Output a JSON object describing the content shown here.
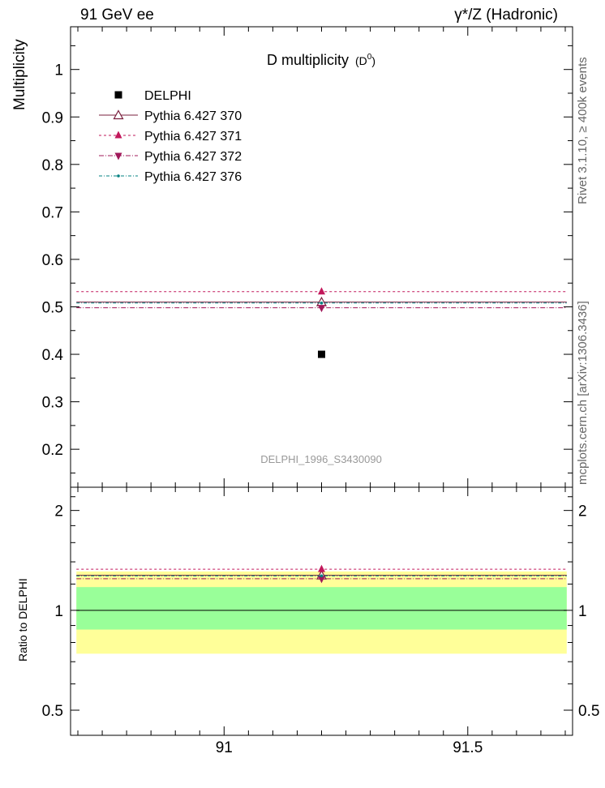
{
  "header": {
    "left": "91 GeV ee",
    "right": "γ*/Z (Hadronic)"
  },
  "side_labels": {
    "rivet": "Rivet 3.1.10, ≥ 400k events",
    "mcplots": "mcplots.cern.ch [arXiv:1306.3436]"
  },
  "chart_data": {
    "type": "scatter",
    "title": "D multiplicity",
    "title_suffix": "(D",
    "title_sup": "0",
    "title_close": ")",
    "analysis_id": "DELPHI_1996_S3430090",
    "xlim": [
      90.685,
      91.715
    ],
    "x_ticks": [
      91,
      91.5
    ],
    "x_tick_labels": [
      "91",
      "91.5"
    ],
    "main": {
      "ylabel": "Multiplicity",
      "ylim": [
        0.12,
        1.09
      ],
      "y_ticks": [
        0.2,
        0.3,
        0.4,
        0.5,
        0.6,
        0.7,
        0.8,
        0.9,
        1
      ],
      "y_tick_labels": [
        "0.2",
        "0.3",
        "0.4",
        "0.5",
        "0.6",
        "0.7",
        "0.8",
        "0.9",
        "1"
      ]
    },
    "ratio": {
      "ylabel": "Ratio to DELPHI",
      "scale": "log",
      "ylim": [
        0.42,
        2.35
      ],
      "y_ticks": [
        0.5,
        1,
        2
      ],
      "y_tick_labels": [
        "0.5",
        "1",
        "2"
      ],
      "bands": [
        {
          "name": "1-sigma",
          "low": 0.875,
          "high": 1.175,
          "color": "#99ff99"
        },
        {
          "name": "2-sigma",
          "low": 0.74,
          "high": 1.31,
          "color": "#ffff99"
        }
      ]
    },
    "legend_position": "top-left",
    "series": [
      {
        "name": "DELPHI",
        "marker": "square",
        "color": "#000000",
        "dash": "none",
        "x": 91.2,
        "y": 0.4,
        "ratio": 1.0,
        "is_data": true
      },
      {
        "name": "Pythia 6.427 370",
        "marker": "triangle-open",
        "color": "#7a1f3d",
        "dash": "none",
        "x": 91.2,
        "y": 0.51,
        "ratio": 1.275
      },
      {
        "name": "Pythia 6.427 371",
        "marker": "triangle-up",
        "color": "#c2185b",
        "dash": "3,3",
        "x": 91.2,
        "y": 0.532,
        "ratio": 1.33
      },
      {
        "name": "Pythia 6.427 372",
        "marker": "triangle-down",
        "color": "#a0185a",
        "dash": "6,2,1,2",
        "x": 91.2,
        "y": 0.498,
        "ratio": 1.245
      },
      {
        "name": "Pythia 6.427 376",
        "marker": "dot",
        "color": "#008080",
        "dash": "4,2,1,2",
        "x": 91.2,
        "y": 0.508,
        "ratio": 1.27
      }
    ]
  }
}
